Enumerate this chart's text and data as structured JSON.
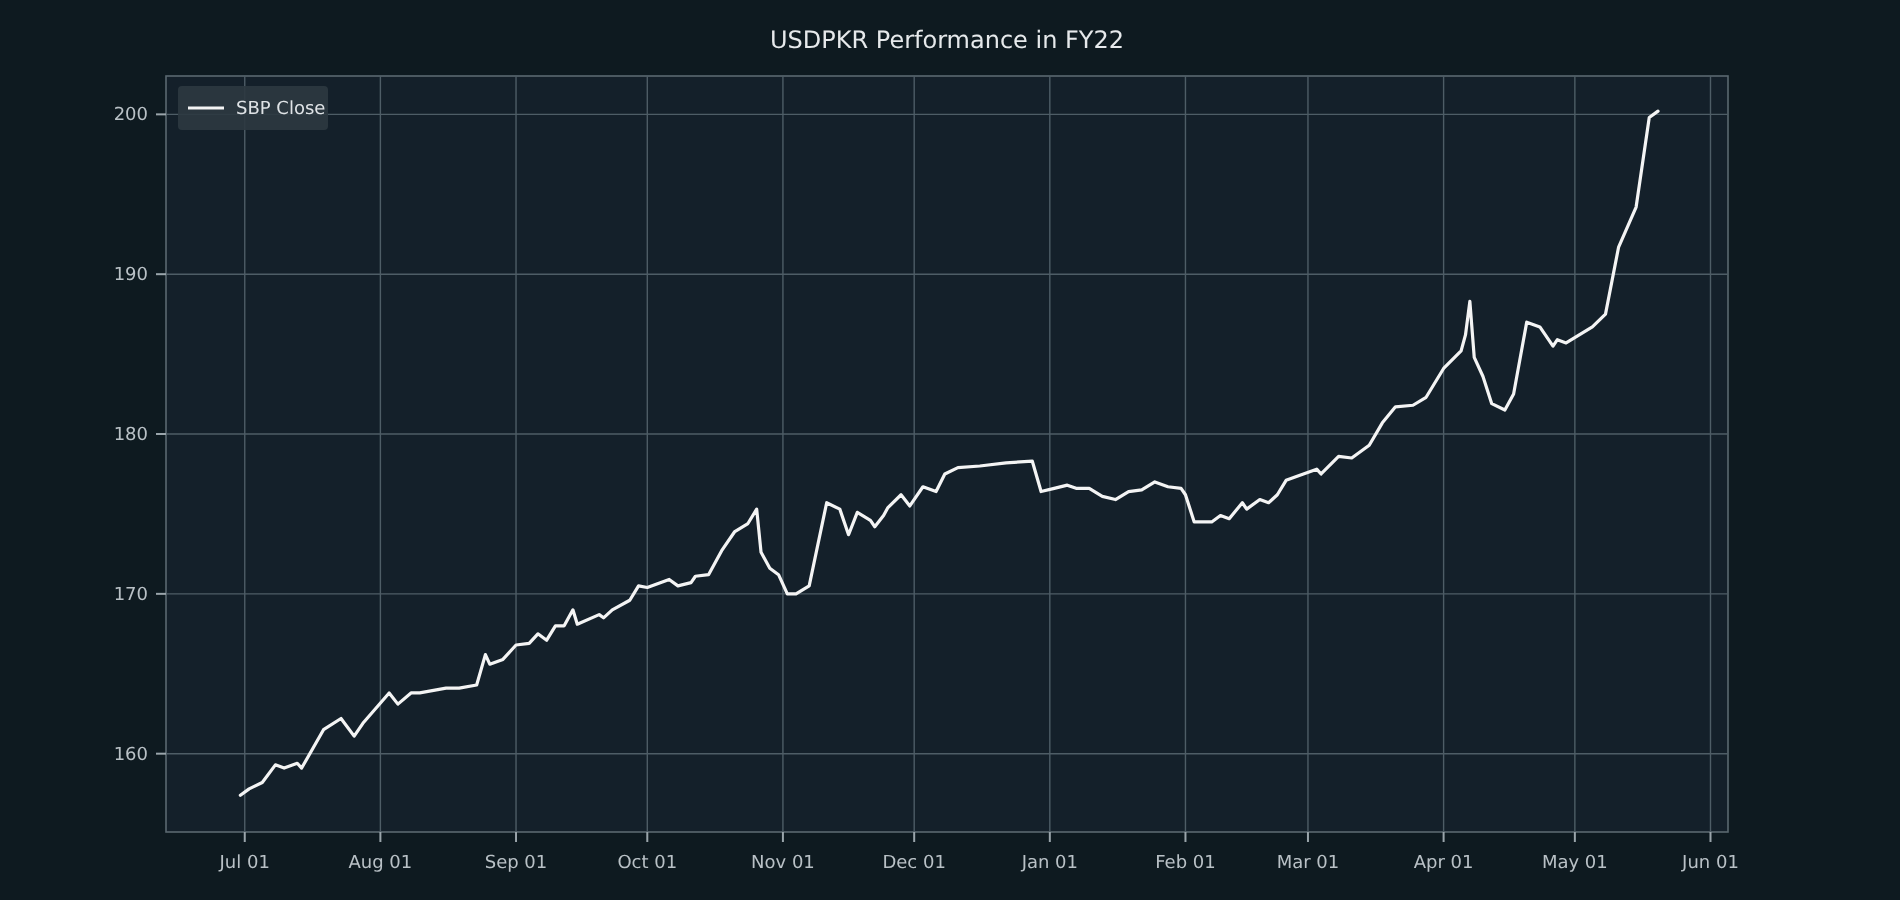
{
  "chart_data": {
    "type": "line",
    "title": "USDPKR Performance in FY22",
    "xlim": [
      "2021-06-13",
      "2022-06-05"
    ],
    "ylim": [
      155.1,
      202.4
    ],
    "xticks": [
      {
        "value": "2021-07-01",
        "label": "Jul 01"
      },
      {
        "value": "2021-08-01",
        "label": "Aug 01"
      },
      {
        "value": "2021-09-01",
        "label": "Sep 01"
      },
      {
        "value": "2021-10-01",
        "label": "Oct 01"
      },
      {
        "value": "2021-11-01",
        "label": "Nov 01"
      },
      {
        "value": "2021-12-01",
        "label": "Dec 01"
      },
      {
        "value": "2022-01-01",
        "label": "Jan 01"
      },
      {
        "value": "2022-02-01",
        "label": "Feb 01"
      },
      {
        "value": "2022-03-01",
        "label": "Mar 01"
      },
      {
        "value": "2022-04-01",
        "label": "Apr 01"
      },
      {
        "value": "2022-05-01",
        "label": "May 01"
      },
      {
        "value": "2022-06-01",
        "label": "Jun 01"
      }
    ],
    "yticks": [
      160,
      170,
      180,
      190,
      200
    ],
    "grid": true,
    "legend": "top left",
    "series": [
      {
        "name": "SBP Close",
        "color": "#f4f4f4",
        "x": [
          "2021-06-30",
          "2021-07-02",
          "2021-07-05",
          "2021-07-08",
          "2021-07-10",
          "2021-07-13",
          "2021-07-14",
          "2021-07-19",
          "2021-07-23",
          "2021-07-26",
          "2021-07-28",
          "2021-08-03",
          "2021-08-05",
          "2021-08-08",
          "2021-08-10",
          "2021-08-16",
          "2021-08-19",
          "2021-08-23",
          "2021-08-25",
          "2021-08-26",
          "2021-08-29",
          "2021-09-01",
          "2021-09-04",
          "2021-09-06",
          "2021-09-08",
          "2021-09-10",
          "2021-09-12",
          "2021-09-14",
          "2021-09-15",
          "2021-09-20",
          "2021-09-21",
          "2021-09-23",
          "2021-09-27",
          "2021-09-29",
          "2021-10-01",
          "2021-10-06",
          "2021-10-08",
          "2021-10-11",
          "2021-10-12",
          "2021-10-15",
          "2021-10-18",
          "2021-10-21",
          "2021-10-24",
          "2021-10-26",
          "2021-10-27",
          "2021-10-29",
          "2021-10-31",
          "2021-11-02",
          "2021-11-04",
          "2021-11-07",
          "2021-11-11",
          "2021-11-14",
          "2021-11-16",
          "2021-11-18",
          "2021-11-21",
          "2021-11-22",
          "2021-11-24",
          "2021-11-25",
          "2021-11-28",
          "2021-11-30",
          "2021-12-03",
          "2021-12-06",
          "2021-12-08",
          "2021-12-11",
          "2021-12-16",
          "2021-12-22",
          "2021-12-28",
          "2021-12-30",
          "2022-01-02",
          "2022-01-05",
          "2022-01-07",
          "2022-01-10",
          "2022-01-13",
          "2022-01-16",
          "2022-01-19",
          "2022-01-22",
          "2022-01-25",
          "2022-01-28",
          "2022-01-31",
          "2022-02-01",
          "2022-02-03",
          "2022-02-07",
          "2022-02-09",
          "2022-02-11",
          "2022-02-14",
          "2022-02-15",
          "2022-02-18",
          "2022-02-20",
          "2022-02-22",
          "2022-02-24",
          "2022-02-27",
          "2022-03-03",
          "2022-03-04",
          "2022-03-08",
          "2022-03-11",
          "2022-03-15",
          "2022-03-18",
          "2022-03-21",
          "2022-03-25",
          "2022-03-28",
          "2022-04-01",
          "2022-04-05",
          "2022-04-06",
          "2022-04-07",
          "2022-04-08",
          "2022-04-10",
          "2022-04-12",
          "2022-04-15",
          "2022-04-17",
          "2022-04-20",
          "2022-04-23",
          "2022-04-26",
          "2022-04-27",
          "2022-04-29",
          "2022-05-05",
          "2022-05-08",
          "2022-05-11",
          "2022-05-15",
          "2022-05-18",
          "2022-05-20"
        ],
        "values": [
          157.4,
          157.8,
          158.2,
          159.3,
          159.1,
          159.4,
          159.1,
          161.5,
          162.2,
          161.1,
          161.9,
          163.8,
          163.1,
          163.8,
          163.8,
          164.1,
          164.1,
          164.3,
          166.2,
          165.6,
          165.9,
          166.8,
          166.9,
          167.5,
          167.1,
          168.0,
          168.0,
          169.0,
          168.1,
          168.7,
          168.5,
          169.0,
          169.6,
          170.5,
          170.4,
          170.9,
          170.5,
          170.7,
          171.1,
          171.2,
          172.7,
          173.9,
          174.4,
          175.3,
          172.6,
          171.6,
          171.2,
          170.0,
          170.0,
          170.5,
          175.7,
          175.3,
          173.7,
          175.1,
          174.6,
          174.2,
          174.9,
          175.4,
          176.2,
          175.5,
          176.7,
          176.4,
          177.5,
          177.9,
          178.0,
          178.2,
          178.3,
          176.4,
          176.6,
          176.8,
          176.6,
          176.6,
          176.1,
          175.9,
          176.4,
          176.5,
          177.0,
          176.7,
          176.6,
          176.2,
          174.5,
          174.5,
          174.9,
          174.7,
          175.7,
          175.3,
          175.9,
          175.7,
          176.2,
          177.1,
          177.4,
          177.8,
          177.5,
          178.6,
          178.5,
          179.3,
          180.7,
          181.7,
          181.8,
          182.3,
          184.1,
          185.2,
          186.2,
          188.3,
          184.8,
          183.6,
          181.9,
          181.5,
          182.5,
          187.0,
          186.7,
          185.5,
          185.9,
          185.7,
          186.7,
          187.5,
          191.7,
          194.2,
          199.8,
          200.2
        ]
      }
    ]
  }
}
